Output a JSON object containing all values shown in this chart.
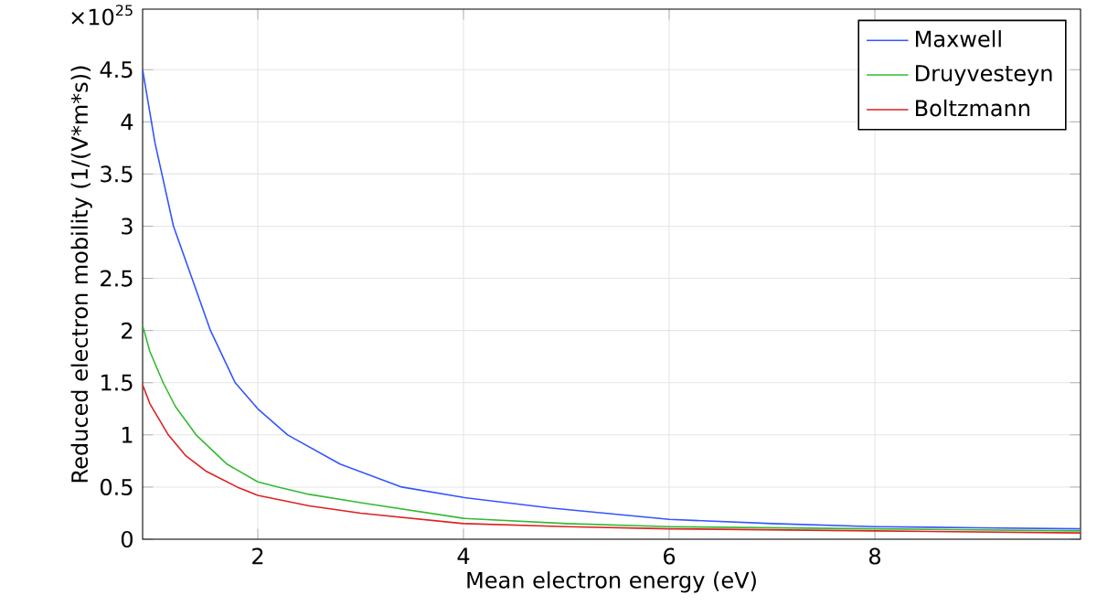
{
  "chart_data": {
    "type": "line",
    "xlabel": "Mean electron energy (eV)",
    "ylabel": "Reduced electron mobility (1/(V*m*s))",
    "annotations": [
      "×10$^{25}$"
    ],
    "xlim": [
      0.88,
      10
    ],
    "ylim": [
      0,
      5.08
    ],
    "xticks": [
      2,
      4,
      6,
      8
    ],
    "yticks": [
      0,
      0.5,
      1,
      1.5,
      2,
      2.5,
      3,
      3.5,
      4,
      4.5
    ],
    "grid": true,
    "legend": "top right",
    "marker": "none",
    "line_style": "solid",
    "series": [
      {
        "name": "Maxwell",
        "color": "#3355ff",
        "x": [
          0.88,
          1.0,
          1.18,
          1.36,
          1.54,
          1.78,
          2.0,
          2.29,
          2.8,
          3.4,
          4.0,
          4.84,
          6.0,
          7.0,
          8.0,
          9.0,
          10.0
        ],
        "values": [
          4.5,
          3.8,
          3.0,
          2.5,
          2.0,
          1.5,
          1.25,
          1.0,
          0.72,
          0.5,
          0.4,
          0.3,
          0.19,
          0.15,
          0.12,
          0.11,
          0.1
        ]
      },
      {
        "name": "Druyvesteyn",
        "color": "#33bb33",
        "x": [
          0.88,
          0.95,
          1.08,
          1.2,
          1.4,
          1.7,
          2.0,
          2.2,
          2.5,
          3.0,
          4.0,
          5.0,
          6.0,
          8.0,
          10.0
        ],
        "values": [
          2.05,
          1.8,
          1.5,
          1.27,
          1.0,
          0.72,
          0.55,
          0.5,
          0.43,
          0.35,
          0.2,
          0.15,
          0.12,
          0.1,
          0.08
        ]
      },
      {
        "name": "Boltzmann",
        "color": "#dd2222",
        "x": [
          0.88,
          0.95,
          1.13,
          1.3,
          1.5,
          1.8,
          2.0,
          2.5,
          3.0,
          4.0,
          5.0,
          6.0,
          8.0,
          10.0
        ],
        "values": [
          1.48,
          1.3,
          1.0,
          0.8,
          0.65,
          0.5,
          0.42,
          0.32,
          0.25,
          0.15,
          0.12,
          0.1,
          0.08,
          0.06
        ]
      }
    ]
  }
}
